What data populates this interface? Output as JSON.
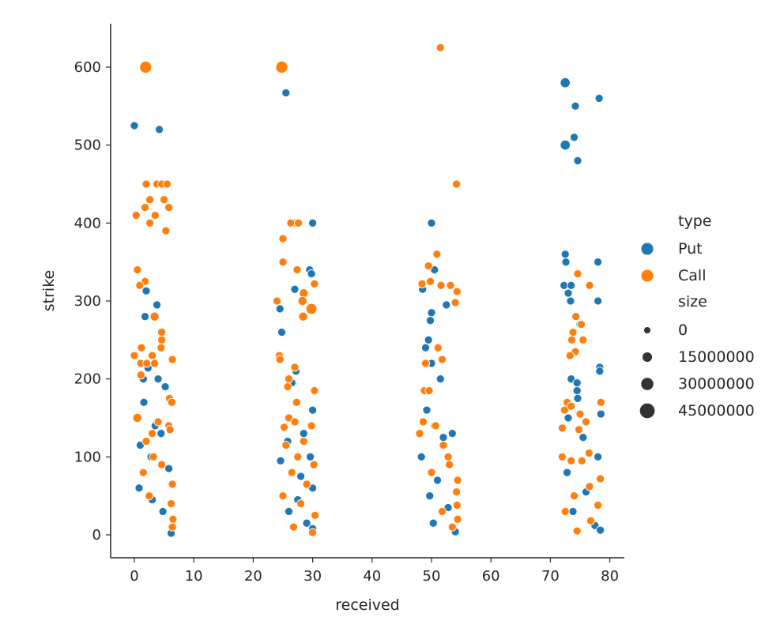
{
  "chart_data": {
    "type": "scatter",
    "title": "",
    "xlabel": "received",
    "ylabel": "strike",
    "xlim": [
      -4,
      82
    ],
    "ylim": [
      -28,
      658
    ],
    "x_ticks": [
      0,
      10,
      20,
      30,
      40,
      50,
      60,
      70,
      80
    ],
    "y_ticks": [
      0,
      100,
      200,
      300,
      400,
      500,
      600
    ],
    "grid": false,
    "legend_position": "right",
    "hue_title": "type",
    "size_title": "size",
    "series": [
      {
        "name": "Put",
        "color": "#1f77b4",
        "points": [
          [
            0.0,
            525,
            5000000.0
          ],
          [
            4.2,
            520,
            5000000.0
          ],
          [
            3.8,
            295,
            5000000.0
          ],
          [
            1.8,
            280,
            5000000.0
          ],
          [
            2.0,
            313,
            5000000.0
          ],
          [
            2.3,
            214,
            5000000.0
          ],
          [
            1.5,
            200,
            5000000.0
          ],
          [
            4.0,
            200,
            5000000.0
          ],
          [
            5.2,
            190,
            5000000.0
          ],
          [
            1.6,
            170,
            5000000.0
          ],
          [
            0.5,
            150,
            5000000.0
          ],
          [
            3.5,
            140,
            5000000.0
          ],
          [
            4.5,
            130,
            5000000.0
          ],
          [
            1.0,
            115,
            5000000.0
          ],
          [
            2.8,
            100,
            5000000.0
          ],
          [
            5.8,
            85,
            5000000.0
          ],
          [
            0.8,
            60,
            5000000.0
          ],
          [
            3.0,
            45,
            5000000.0
          ],
          [
            4.8,
            30,
            5000000.0
          ],
          [
            6.2,
            2,
            5000000.0
          ],
          [
            25.5,
            567,
            5000000.0
          ],
          [
            30.0,
            400,
            5000000.0
          ],
          [
            29.5,
            340,
            5000000.0
          ],
          [
            29.8,
            335,
            5000000.0
          ],
          [
            27.0,
            315,
            5000000.0
          ],
          [
            24.5,
            290,
            5000000.0
          ],
          [
            24.8,
            260,
            5000000.0
          ],
          [
            27.2,
            210,
            5000000.0
          ],
          [
            26.5,
            195,
            5000000.0
          ],
          [
            30.0,
            160,
            5000000.0
          ],
          [
            28.5,
            130,
            5000000.0
          ],
          [
            25.8,
            120,
            5000000.0
          ],
          [
            29.6,
            100,
            5000000.0
          ],
          [
            24.6,
            95,
            5000000.0
          ],
          [
            28.0,
            75,
            5000000.0
          ],
          [
            30.0,
            60,
            5000000.0
          ],
          [
            27.5,
            45,
            5000000.0
          ],
          [
            26.0,
            30,
            5000000.0
          ],
          [
            29.0,
            15,
            5000000.0
          ],
          [
            30.0,
            8,
            5000000.0
          ],
          [
            50.0,
            400,
            5000000.0
          ],
          [
            50.5,
            340,
            5000000.0
          ],
          [
            48.5,
            315,
            5000000.0
          ],
          [
            52.5,
            295,
            5000000.0
          ],
          [
            50.0,
            285,
            5000000.0
          ],
          [
            49.8,
            275,
            5000000.0
          ],
          [
            49.5,
            250,
            5000000.0
          ],
          [
            49.0,
            240,
            5000000.0
          ],
          [
            50.0,
            220,
            5000000.0
          ],
          [
            51.5,
            200,
            5000000.0
          ],
          [
            49.2,
            160,
            5000000.0
          ],
          [
            50.5,
            140,
            5000000.0
          ],
          [
            53.5,
            130,
            5000000.0
          ],
          [
            52.0,
            125,
            5000000.0
          ],
          [
            48.3,
            100,
            5000000.0
          ],
          [
            51.0,
            70,
            5000000.0
          ],
          [
            49.7,
            50,
            5000000.0
          ],
          [
            52.8,
            35,
            5000000.0
          ],
          [
            50.3,
            15,
            5000000.0
          ],
          [
            54.0,
            4,
            5000000.0
          ],
          [
            72.5,
            580,
            15000000.0
          ],
          [
            74.2,
            550,
            5000000.0
          ],
          [
            78.2,
            560,
            5000000.0
          ],
          [
            72.5,
            500,
            15000000.0
          ],
          [
            74.0,
            510,
            5000000.0
          ],
          [
            74.6,
            480,
            5000000.0
          ],
          [
            72.5,
            360,
            5000000.0
          ],
          [
            72.6,
            350,
            5000000.0
          ],
          [
            78.0,
            350,
            5000000.0
          ],
          [
            72.3,
            320,
            5000000.0
          ],
          [
            73.5,
            320,
            5000000.0
          ],
          [
            73.0,
            310,
            5000000.0
          ],
          [
            73.4,
            300,
            5000000.0
          ],
          [
            78.0,
            300,
            5000000.0
          ],
          [
            75.0,
            270,
            5000000.0
          ],
          [
            78.3,
            215,
            5000000.0
          ],
          [
            78.3,
            210,
            5000000.0
          ],
          [
            73.5,
            200,
            5000000.0
          ],
          [
            74.5,
            195,
            5000000.0
          ],
          [
            74.5,
            185,
            5000000.0
          ],
          [
            74.6,
            175,
            5000000.0
          ],
          [
            73.0,
            150,
            5000000.0
          ],
          [
            78.5,
            155,
            5000000.0
          ],
          [
            75.5,
            125,
            5000000.0
          ],
          [
            78.0,
            100,
            5000000.0
          ],
          [
            72.8,
            80,
            5000000.0
          ],
          [
            76.0,
            55,
            5000000.0
          ],
          [
            73.8,
            30,
            5000000.0
          ],
          [
            77.5,
            12,
            5000000.0
          ],
          [
            78.4,
            6,
            5000000.0
          ]
        ]
      },
      {
        "name": "Call",
        "color": "#ff7f0e",
        "points": [
          [
            1.9,
            600,
            25000000.0
          ],
          [
            0.3,
            410,
            5000000.0
          ],
          [
            1.8,
            420,
            5000000.0
          ],
          [
            2.0,
            450,
            5000000.0
          ],
          [
            2.6,
            430,
            5000000.0
          ],
          [
            3.8,
            450,
            5000000.0
          ],
          [
            4.6,
            450,
            5000000.0
          ],
          [
            5.5,
            450,
            5000000.0
          ],
          [
            3.5,
            410,
            5000000.0
          ],
          [
            2.6,
            400,
            5000000.0
          ],
          [
            5.0,
            430,
            5000000.0
          ],
          [
            5.8,
            420,
            5000000.0
          ],
          [
            5.3,
            390,
            5000000.0
          ],
          [
            0.5,
            340,
            5000000.0
          ],
          [
            1.8,
            325,
            5000000.0
          ],
          [
            0.9,
            320,
            5000000.0
          ],
          [
            3.4,
            280,
            10000000.0
          ],
          [
            4.6,
            260,
            5000000.0
          ],
          [
            4.6,
            250,
            5000000.0
          ],
          [
            4.5,
            240,
            5000000.0
          ],
          [
            1.2,
            240,
            5000000.0
          ],
          [
            0.0,
            230,
            5000000.0
          ],
          [
            6.4,
            225,
            5000000.0
          ],
          [
            3.0,
            230,
            5000000.0
          ],
          [
            1.1,
            220,
            5000000.0
          ],
          [
            2.1,
            220,
            5000000.0
          ],
          [
            3.4,
            220,
            5000000.0
          ],
          [
            1.1,
            205,
            5000000.0
          ],
          [
            5.9,
            175,
            5000000.0
          ],
          [
            6.3,
            170,
            5000000.0
          ],
          [
            0.5,
            150,
            10000000.0
          ],
          [
            4.0,
            145,
            5000000.0
          ],
          [
            5.8,
            140,
            5000000.0
          ],
          [
            6.0,
            135,
            5000000.0
          ],
          [
            3.0,
            130,
            5000000.0
          ],
          [
            2.0,
            120,
            5000000.0
          ],
          [
            3.2,
            100,
            5000000.0
          ],
          [
            4.6,
            90,
            5000000.0
          ],
          [
            6.4,
            65,
            5000000.0
          ],
          [
            6.2,
            40,
            5000000.0
          ],
          [
            6.5,
            20,
            5000000.0
          ],
          [
            6.4,
            10,
            5000000.0
          ],
          [
            1.5,
            80,
            5000000.0
          ],
          [
            2.5,
            50,
            5000000.0
          ],
          [
            24.8,
            600,
            25000000.0
          ],
          [
            27.0,
            400,
            5000000.0
          ],
          [
            26.3,
            400,
            5000000.0
          ],
          [
            27.6,
            400,
            5000000.0
          ],
          [
            25.0,
            380,
            5000000.0
          ],
          [
            25.0,
            350,
            5000000.0
          ],
          [
            27.4,
            340,
            5000000.0
          ],
          [
            30.3,
            322,
            5000000.0
          ],
          [
            28.5,
            310,
            10000000.0
          ],
          [
            24.0,
            300,
            5000000.0
          ],
          [
            28.3,
            300,
            10000000.0
          ],
          [
            29.8,
            290,
            20000000.0
          ],
          [
            28.4,
            280,
            10000000.0
          ],
          [
            24.4,
            230,
            5000000.0
          ],
          [
            24.5,
            225,
            5000000.0
          ],
          [
            27.0,
            215,
            5000000.0
          ],
          [
            26.0,
            200,
            5000000.0
          ],
          [
            25.8,
            190,
            5000000.0
          ],
          [
            30.3,
            185,
            5000000.0
          ],
          [
            27.3,
            170,
            5000000.0
          ],
          [
            26.0,
            150,
            5000000.0
          ],
          [
            27.0,
            145,
            5000000.0
          ],
          [
            25.2,
            138,
            5000000.0
          ],
          [
            29.8,
            140,
            5000000.0
          ],
          [
            28.5,
            120,
            5000000.0
          ],
          [
            25.5,
            115,
            5000000.0
          ],
          [
            27.5,
            100,
            5000000.0
          ],
          [
            30.2,
            90,
            5000000.0
          ],
          [
            26.5,
            80,
            5000000.0
          ],
          [
            29.0,
            65,
            5000000.0
          ],
          [
            25.0,
            50,
            5000000.0
          ],
          [
            28.0,
            40,
            5000000.0
          ],
          [
            30.4,
            25,
            5000000.0
          ],
          [
            26.8,
            10,
            5000000.0
          ],
          [
            30.0,
            3,
            5000000.0
          ],
          [
            51.5,
            625,
            5000000.0
          ],
          [
            54.2,
            450,
            5000000.0
          ],
          [
            50.9,
            360,
            5000000.0
          ],
          [
            49.5,
            345,
            5000000.0
          ],
          [
            51.6,
            320,
            5000000.0
          ],
          [
            53.2,
            320,
            5000000.0
          ],
          [
            49.8,
            325,
            5000000.0
          ],
          [
            48.4,
            322,
            5000000.0
          ],
          [
            54.3,
            312,
            5000000.0
          ],
          [
            54.0,
            298,
            5000000.0
          ],
          [
            51.1,
            240,
            5000000.0
          ],
          [
            51.8,
            225,
            5000000.0
          ],
          [
            49.0,
            220,
            5000000.0
          ],
          [
            48.8,
            185,
            5000000.0
          ],
          [
            49.6,
            185,
            5000000.0
          ],
          [
            48.6,
            145,
            5000000.0
          ],
          [
            50.7,
            140,
            5000000.0
          ],
          [
            48.0,
            130,
            5000000.0
          ],
          [
            52.0,
            115,
            5000000.0
          ],
          [
            52.8,
            100,
            5000000.0
          ],
          [
            53.0,
            90,
            5000000.0
          ],
          [
            50.0,
            80,
            5000000.0
          ],
          [
            54.4,
            70,
            5000000.0
          ],
          [
            54.2,
            55,
            5000000.0
          ],
          [
            54.3,
            38,
            5000000.0
          ],
          [
            51.8,
            30,
            5000000.0
          ],
          [
            54.4,
            20,
            5000000.0
          ],
          [
            53.5,
            10,
            5000000.0
          ],
          [
            74.6,
            335,
            5000000.0
          ],
          [
            76.6,
            320,
            5000000.0
          ],
          [
            74.3,
            280,
            5000000.0
          ],
          [
            75.2,
            270,
            5000000.0
          ],
          [
            73.8,
            260,
            5000000.0
          ],
          [
            73.6,
            250,
            5000000.0
          ],
          [
            75.5,
            250,
            5000000.0
          ],
          [
            74.2,
            235,
            5000000.0
          ],
          [
            73.3,
            230,
            5000000.0
          ],
          [
            78.5,
            170,
            5000000.0
          ],
          [
            72.8,
            170,
            5000000.0
          ],
          [
            72.4,
            160,
            5000000.0
          ],
          [
            73.5,
            165,
            5000000.0
          ],
          [
            75.0,
            155,
            5000000.0
          ],
          [
            76.0,
            145,
            5000000.0
          ],
          [
            74.8,
            135,
            5000000.0
          ],
          [
            72.0,
            137,
            5000000.0
          ],
          [
            76.5,
            105,
            5000000.0
          ],
          [
            72.0,
            100,
            5000000.0
          ],
          [
            73.5,
            95,
            5000000.0
          ],
          [
            75.3,
            95,
            5000000.0
          ],
          [
            78.4,
            72,
            5000000.0
          ],
          [
            76.6,
            62,
            5000000.0
          ],
          [
            74.0,
            50,
            5000000.0
          ],
          [
            78.0,
            38,
            5000000.0
          ],
          [
            72.5,
            30,
            5000000.0
          ],
          [
            76.8,
            18,
            5000000.0
          ],
          [
            74.5,
            5,
            5000000.0
          ]
        ]
      }
    ],
    "size_legend": [
      {
        "label": "0",
        "value": 0
      },
      {
        "label": "15000000",
        "value": 15000000
      },
      {
        "label": "30000000",
        "value": 30000000
      },
      {
        "label": "45000000",
        "value": 45000000
      }
    ]
  }
}
